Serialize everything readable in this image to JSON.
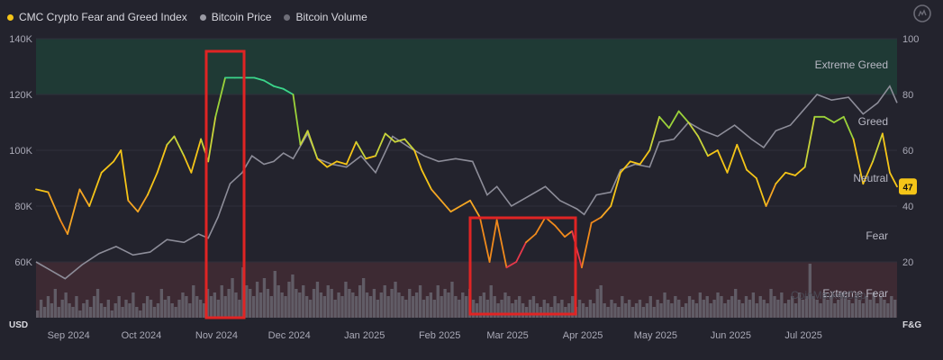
{
  "legend": [
    {
      "name": "CMC Crypto Fear and Greed Index",
      "color": "#f5c518"
    },
    {
      "name": "Bitcoin Price",
      "color": "#9a9aa4"
    },
    {
      "name": "Bitcoin Volume",
      "color": "#6e6e78"
    }
  ],
  "corner_labels": {
    "left": "USD",
    "right": "F&G"
  },
  "watermark": "CoinMarketCap",
  "highlight_color": "#e02424",
  "chart_data": {
    "type": "line",
    "title": "",
    "x_labels": [
      "Sep 2024",
      "Oct 2024",
      "Nov 2024",
      "Dec 2024",
      "Jan 2025",
      "Feb 2025",
      "Mar 2025",
      "Apr 2025",
      "May 2025",
      "Jun 2025",
      "Jul 2025"
    ],
    "x_range": [
      "2024-08-26",
      "2025-08-16"
    ],
    "y_left": {
      "unit": "USD",
      "ticks": [
        "60K",
        "80K",
        "100K",
        "120K",
        "140K"
      ],
      "tick_values": [
        60000,
        80000,
        100000,
        120000,
        140000
      ],
      "range": [
        40000,
        140000
      ]
    },
    "y_right": {
      "unit": "F&G",
      "ticks": [
        "20",
        "40",
        "60",
        "80",
        "100"
      ],
      "tick_values": [
        20,
        40,
        60,
        80,
        100
      ],
      "range": [
        0,
        100
      ]
    },
    "zones": [
      {
        "name": "Extreme Greed",
        "from": 80,
        "to": 100,
        "color": "#1f3a35"
      },
      {
        "name": "Greed",
        "from": 60,
        "to": 80
      },
      {
        "name": "Neutral",
        "from": 40,
        "to": 60
      },
      {
        "name": "Fear",
        "from": 20,
        "to": 40
      },
      {
        "name": "Extreme Fear",
        "from": 0,
        "to": 20,
        "color": "#3d2a33"
      }
    ],
    "current_index": {
      "value": 47,
      "label": "47",
      "color": "#f5c518"
    },
    "series": [
      {
        "name": "CMC Crypto Fear and Greed Index",
        "axis": "right",
        "points": [
          [
            "2024-08-26",
            46
          ],
          [
            "2024-08-31",
            45
          ],
          [
            "2024-09-05",
            35
          ],
          [
            "2024-09-08",
            30
          ],
          [
            "2024-09-13",
            46
          ],
          [
            "2024-09-17",
            40
          ],
          [
            "2024-09-22",
            52
          ],
          [
            "2024-09-27",
            56
          ],
          [
            "2024-09-30",
            60
          ],
          [
            "2024-10-03",
            42
          ],
          [
            "2024-10-07",
            38
          ],
          [
            "2024-10-11",
            44
          ],
          [
            "2024-10-15",
            52
          ],
          [
            "2024-10-19",
            62
          ],
          [
            "2024-10-22",
            65
          ],
          [
            "2024-10-26",
            58
          ],
          [
            "2024-10-29",
            52
          ],
          [
            "2024-11-02",
            64
          ],
          [
            "2024-11-05",
            56
          ],
          [
            "2024-11-08",
            72
          ],
          [
            "2024-11-12",
            86
          ],
          [
            "2024-11-16",
            86
          ],
          [
            "2024-11-20",
            86
          ],
          [
            "2024-11-24",
            86
          ],
          [
            "2024-11-28",
            85
          ],
          [
            "2024-12-02",
            83
          ],
          [
            "2024-12-06",
            82
          ],
          [
            "2024-12-10",
            80
          ],
          [
            "2024-12-13",
            62
          ],
          [
            "2024-12-16",
            67
          ],
          [
            "2024-12-20",
            57
          ],
          [
            "2024-12-24",
            54
          ],
          [
            "2024-12-28",
            56
          ],
          [
            "2025-01-01",
            55
          ],
          [
            "2025-01-05",
            63
          ],
          [
            "2025-01-09",
            57
          ],
          [
            "2025-01-13",
            58
          ],
          [
            "2025-01-17",
            66
          ],
          [
            "2025-01-21",
            63
          ],
          [
            "2025-01-25",
            64
          ],
          [
            "2025-01-29",
            60
          ],
          [
            "2025-02-01",
            53
          ],
          [
            "2025-02-05",
            46
          ],
          [
            "2025-02-09",
            42
          ],
          [
            "2025-02-13",
            38
          ],
          [
            "2025-02-17",
            40
          ],
          [
            "2025-02-21",
            42
          ],
          [
            "2025-02-25",
            36
          ],
          [
            "2025-03-01",
            20
          ],
          [
            "2025-03-04",
            35
          ],
          [
            "2025-03-08",
            18
          ],
          [
            "2025-03-12",
            20
          ],
          [
            "2025-03-16",
            27
          ],
          [
            "2025-03-20",
            30
          ],
          [
            "2025-03-24",
            36
          ],
          [
            "2025-03-28",
            33
          ],
          [
            "2025-04-01",
            29
          ],
          [
            "2025-04-04",
            31
          ],
          [
            "2025-04-08",
            18
          ],
          [
            "2025-04-12",
            34
          ],
          [
            "2025-04-16",
            36
          ],
          [
            "2025-04-20",
            40
          ],
          [
            "2025-04-24",
            52
          ],
          [
            "2025-04-28",
            56
          ],
          [
            "2025-05-02",
            55
          ],
          [
            "2025-05-06",
            60
          ],
          [
            "2025-05-10",
            72
          ],
          [
            "2025-05-14",
            68
          ],
          [
            "2025-05-18",
            74
          ],
          [
            "2025-05-22",
            70
          ],
          [
            "2025-05-26",
            65
          ],
          [
            "2025-05-30",
            58
          ],
          [
            "2025-06-03",
            60
          ],
          [
            "2025-06-07",
            52
          ],
          [
            "2025-06-11",
            62
          ],
          [
            "2025-06-15",
            53
          ],
          [
            "2025-06-19",
            50
          ],
          [
            "2025-06-23",
            40
          ],
          [
            "2025-06-27",
            48
          ],
          [
            "2025-07-01",
            52
          ],
          [
            "2025-07-05",
            51
          ],
          [
            "2025-07-09",
            54
          ],
          [
            "2025-07-13",
            72
          ],
          [
            "2025-07-17",
            72
          ],
          [
            "2025-07-21",
            70
          ],
          [
            "2025-07-25",
            72
          ],
          [
            "2025-07-29",
            64
          ],
          [
            "2025-08-02",
            48
          ],
          [
            "2025-08-06",
            56
          ],
          [
            "2025-08-10",
            66
          ],
          [
            "2025-08-13",
            52
          ],
          [
            "2025-08-16",
            47
          ]
        ]
      },
      {
        "name": "Bitcoin Price",
        "axis": "left",
        "points": [
          [
            "2024-08-26",
            60000
          ],
          [
            "2024-09-01",
            57000
          ],
          [
            "2024-09-07",
            54000
          ],
          [
            "2024-09-14",
            59000
          ],
          [
            "2024-09-21",
            63000
          ],
          [
            "2024-09-28",
            65500
          ],
          [
            "2024-10-05",
            62500
          ],
          [
            "2024-10-12",
            63500
          ],
          [
            "2024-10-19",
            68000
          ],
          [
            "2024-10-26",
            67000
          ],
          [
            "2024-11-01",
            70000
          ],
          [
            "2024-11-05",
            68500
          ],
          [
            "2024-11-09",
            76000
          ],
          [
            "2024-11-14",
            88000
          ],
          [
            "2024-11-19",
            92000
          ],
          [
            "2024-11-23",
            98000
          ],
          [
            "2024-11-28",
            95000
          ],
          [
            "2024-12-02",
            96000
          ],
          [
            "2024-12-06",
            99000
          ],
          [
            "2024-12-10",
            97000
          ],
          [
            "2024-12-16",
            106000
          ],
          [
            "2024-12-20",
            97000
          ],
          [
            "2024-12-26",
            95000
          ],
          [
            "2025-01-01",
            94000
          ],
          [
            "2025-01-07",
            98000
          ],
          [
            "2025-01-13",
            92000
          ],
          [
            "2025-01-20",
            105000
          ],
          [
            "2025-01-27",
            101000
          ],
          [
            "2025-02-02",
            98000
          ],
          [
            "2025-02-08",
            96000
          ],
          [
            "2025-02-15",
            97000
          ],
          [
            "2025-02-22",
            96000
          ],
          [
            "2025-02-28",
            84000
          ],
          [
            "2025-03-04",
            87000
          ],
          [
            "2025-03-10",
            80000
          ],
          [
            "2025-03-16",
            83000
          ],
          [
            "2025-03-24",
            87000
          ],
          [
            "2025-03-30",
            82000
          ],
          [
            "2025-04-06",
            79000
          ],
          [
            "2025-04-09",
            77000
          ],
          [
            "2025-04-14",
            84000
          ],
          [
            "2025-04-20",
            85000
          ],
          [
            "2025-04-24",
            93000
          ],
          [
            "2025-04-30",
            95000
          ],
          [
            "2025-05-06",
            94000
          ],
          [
            "2025-05-10",
            103000
          ],
          [
            "2025-05-16",
            104000
          ],
          [
            "2025-05-22",
            110000
          ],
          [
            "2025-05-28",
            107000
          ],
          [
            "2025-06-03",
            105000
          ],
          [
            "2025-06-10",
            109000
          ],
          [
            "2025-06-17",
            104000
          ],
          [
            "2025-06-22",
            101000
          ],
          [
            "2025-06-27",
            107000
          ],
          [
            "2025-07-03",
            109000
          ],
          [
            "2025-07-10",
            116000
          ],
          [
            "2025-07-14",
            120000
          ],
          [
            "2025-07-20",
            118000
          ],
          [
            "2025-07-27",
            119000
          ],
          [
            "2025-08-02",
            113000
          ],
          [
            "2025-08-08",
            117000
          ],
          [
            "2025-08-13",
            123000
          ],
          [
            "2025-08-16",
            117000
          ]
        ]
      },
      {
        "name": "Bitcoin Volume",
        "type": "bar",
        "unit": "relative",
        "values": [
          2,
          5,
          3,
          6,
          4,
          8,
          3,
          5,
          7,
          4,
          3,
          6,
          2,
          4,
          5,
          3,
          6,
          8,
          4,
          3,
          5,
          2,
          4,
          6,
          3,
          5,
          4,
          7,
          3,
          2,
          4,
          6,
          5,
          3,
          4,
          8,
          5,
          6,
          4,
          3,
          5,
          7,
          6,
          4,
          9,
          6,
          5,
          4,
          8,
          6,
          7,
          5,
          9,
          6,
          8,
          11,
          7,
          5,
          14,
          9,
          8,
          6,
          10,
          7,
          11,
          8,
          6,
          13,
          9,
          7,
          6,
          10,
          12,
          8,
          7,
          9,
          6,
          5,
          8,
          10,
          7,
          6,
          9,
          8,
          5,
          7,
          6,
          10,
          8,
          7,
          6,
          9,
          11,
          7,
          6,
          8,
          5,
          7,
          9,
          6,
          8,
          10,
          7,
          6,
          5,
          8,
          6,
          7,
          9,
          5,
          6,
          7,
          5,
          9,
          6,
          8,
          7,
          10,
          6,
          5,
          7,
          6,
          8,
          5,
          4,
          6,
          7,
          5,
          9,
          6,
          4,
          5,
          7,
          6,
          4,
          5,
          6,
          4,
          3,
          5,
          6,
          4,
          3,
          5,
          4,
          3,
          6,
          4,
          5,
          3,
          4,
          6,
          3,
          5,
          4,
          3,
          5,
          4,
          8,
          9,
          4,
          3,
          5,
          4,
          3,
          6,
          4,
          5,
          3,
          4,
          5,
          3,
          4,
          6,
          3,
          5,
          4,
          7,
          5,
          4,
          6,
          5,
          3,
          4,
          6,
          5,
          4,
          7,
          5,
          6,
          4,
          5,
          7,
          6,
          4,
          5,
          6,
          8,
          5,
          4,
          6,
          5,
          7,
          4,
          6,
          5,
          4,
          8,
          6,
          5,
          7,
          4,
          5,
          6,
          4,
          7,
          5,
          6,
          15,
          6,
          5,
          4,
          7,
          5,
          6,
          4,
          5,
          7,
          6,
          5,
          4,
          6,
          5,
          4,
          6,
          5,
          7,
          4,
          6,
          5,
          4,
          6,
          5
        ]
      }
    ]
  }
}
